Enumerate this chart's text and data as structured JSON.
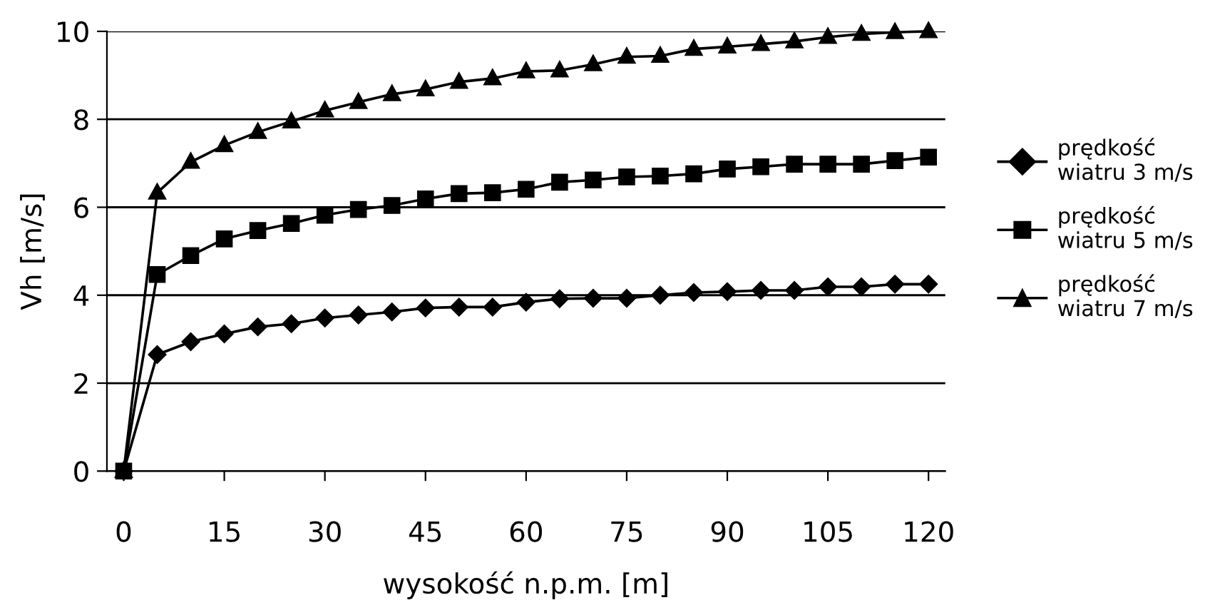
{
  "chart_data": {
    "type": "line",
    "xlabel": "wysokość n.p.m. [m]",
    "ylabel": "Vh [m/s]",
    "x": [
      0,
      5,
      10,
      15,
      20,
      25,
      30,
      35,
      40,
      45,
      50,
      55,
      60,
      65,
      70,
      75,
      80,
      85,
      90,
      95,
      100,
      105,
      110,
      115,
      120
    ],
    "xlim": [
      -2.5,
      122.5
    ],
    "xticks": [
      0,
      15,
      30,
      45,
      60,
      75,
      90,
      105,
      120
    ],
    "ylim": [
      0,
      10
    ],
    "yticks": [
      0,
      2,
      4,
      6,
      8,
      10
    ],
    "grid": "y",
    "legend": "right",
    "line_style": "solid",
    "series": [
      {
        "name": "prędkość\nwiatru 3 m/s",
        "color": "#000000",
        "marker": "diamond",
        "values": [
          0,
          2.65,
          2.94,
          3.12,
          3.28,
          3.35,
          3.48,
          3.55,
          3.62,
          3.71,
          3.73,
          3.73,
          3.84,
          3.92,
          3.93,
          3.93,
          4.0,
          4.06,
          4.08,
          4.11,
          4.11,
          4.19,
          4.19,
          4.25,
          4.25
        ]
      },
      {
        "name": "prędkość\nwiatru 5 m/s",
        "color": "#000000",
        "marker": "square",
        "values": [
          0,
          4.47,
          4.9,
          5.28,
          5.47,
          5.63,
          5.82,
          5.95,
          6.04,
          6.19,
          6.31,
          6.33,
          6.41,
          6.57,
          6.62,
          6.69,
          6.71,
          6.76,
          6.87,
          6.92,
          6.98,
          6.98,
          6.98,
          7.06,
          7.14
        ]
      },
      {
        "name": "prędkość\nwiatru 7 m/s",
        "color": "#000000",
        "marker": "triangle",
        "values": [
          0,
          6.33,
          7.03,
          7.41,
          7.71,
          7.95,
          8.2,
          8.39,
          8.57,
          8.68,
          8.85,
          8.93,
          9.09,
          9.11,
          9.25,
          9.42,
          9.44,
          9.6,
          9.65,
          9.71,
          9.77,
          9.87,
          9.94,
          9.98,
          10.0
        ]
      }
    ]
  }
}
